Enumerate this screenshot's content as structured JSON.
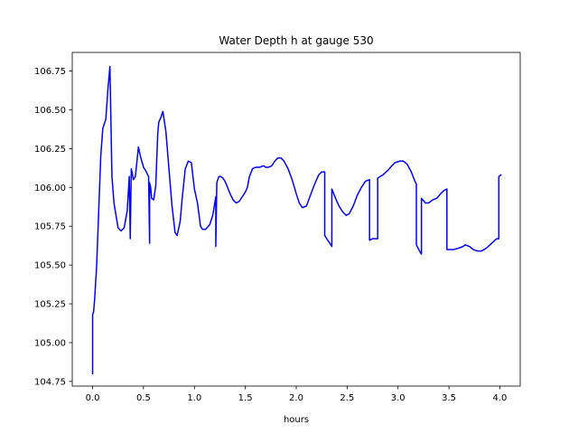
{
  "chart_data": {
    "type": "line",
    "title": "Water Depth h at gauge 530",
    "xlabel": "hours",
    "ylabel": "",
    "xlim": [
      -0.2,
      4.2
    ],
    "ylim": [
      104.72,
      106.87
    ],
    "xticks": [
      0.0,
      0.5,
      1.0,
      1.5,
      2.0,
      2.5,
      3.0,
      3.5,
      4.0
    ],
    "xtick_labels": [
      "0.0",
      "0.5",
      "1.0",
      "1.5",
      "2.0",
      "2.5",
      "3.0",
      "3.5",
      "4.0"
    ],
    "yticks": [
      104.75,
      105.0,
      105.25,
      105.5,
      105.75,
      106.0,
      106.25,
      106.5,
      106.75
    ],
    "ytick_labels": [
      "104.75",
      "105.00",
      "105.25",
      "105.50",
      "105.75",
      "106.00",
      "106.25",
      "106.50",
      "106.75"
    ],
    "grid": false,
    "series": [
      {
        "color": "#0000ff",
        "x": [
          0.0,
          0.0,
          0.01,
          0.02,
          0.04,
          0.06,
          0.08,
          0.1,
          0.11,
          0.13,
          0.15,
          0.17,
          0.19,
          0.21,
          0.25,
          0.28,
          0.31,
          0.34,
          0.36,
          0.37,
          0.37,
          0.38,
          0.39,
          0.4,
          0.42,
          0.45,
          0.47,
          0.5,
          0.52,
          0.55,
          0.56,
          0.56,
          0.57,
          0.58,
          0.6,
          0.62,
          0.64,
          0.65,
          0.67,
          0.69,
          0.72,
          0.75,
          0.78,
          0.81,
          0.83,
          0.86,
          0.88,
          0.91,
          0.94,
          0.97,
          1.0,
          1.03,
          1.06,
          1.08,
          1.11,
          1.15,
          1.18,
          1.21,
          1.21,
          1.22,
          1.24,
          1.26,
          1.28,
          1.3,
          1.32,
          1.35,
          1.38,
          1.41,
          1.44,
          1.47,
          1.5,
          1.52,
          1.54,
          1.57,
          1.6,
          1.64,
          1.68,
          1.7,
          1.73,
          1.76,
          1.79,
          1.82,
          1.85,
          1.88,
          1.92,
          1.96,
          2.0,
          2.03,
          2.06,
          2.1,
          2.14,
          2.18,
          2.22,
          2.25,
          2.28,
          2.28,
          2.33,
          2.35,
          2.35,
          2.38,
          2.42,
          2.46,
          2.49,
          2.52,
          2.56,
          2.6,
          2.64,
          2.68,
          2.72,
          2.72,
          2.75,
          2.8,
          2.8,
          2.85,
          2.9,
          2.94,
          2.97,
          3.02,
          3.05,
          3.09,
          3.13,
          3.16,
          3.18,
          3.18,
          3.22,
          3.23,
          3.23,
          3.27,
          3.3,
          3.34,
          3.38,
          3.42,
          3.45,
          3.48,
          3.48,
          3.55,
          3.6,
          3.64,
          3.66,
          3.7,
          3.74,
          3.78,
          3.82,
          3.87,
          3.92,
          3.97,
          3.99,
          3.99,
          4.01
        ],
        "y": [
          104.8,
          105.18,
          105.2,
          105.28,
          105.5,
          105.85,
          106.2,
          106.38,
          106.4,
          106.44,
          106.63,
          106.78,
          106.07,
          105.9,
          105.74,
          105.72,
          105.74,
          105.85,
          106.07,
          105.67,
          105.7,
          106.12,
          106.09,
          106.05,
          106.07,
          106.26,
          106.2,
          106.13,
          106.11,
          106.07,
          105.64,
          106.03,
          106.0,
          105.93,
          105.92,
          106.01,
          106.35,
          106.42,
          106.45,
          106.49,
          106.36,
          106.12,
          105.88,
          105.71,
          105.69,
          105.78,
          105.93,
          106.12,
          106.17,
          106.16,
          105.99,
          105.9,
          105.75,
          105.73,
          105.73,
          105.76,
          105.82,
          105.94,
          105.62,
          106.03,
          106.07,
          106.07,
          106.06,
          106.04,
          106.01,
          105.96,
          105.92,
          105.9,
          105.91,
          105.94,
          105.97,
          106.0,
          106.07,
          106.12,
          106.13,
          106.13,
          106.14,
          106.13,
          106.13,
          106.14,
          106.17,
          106.19,
          106.19,
          106.17,
          106.12,
          106.05,
          105.96,
          105.9,
          105.87,
          105.88,
          105.95,
          106.02,
          106.08,
          106.1,
          106.1,
          105.69,
          105.64,
          105.62,
          105.99,
          105.94,
          105.88,
          105.84,
          105.82,
          105.83,
          105.88,
          105.95,
          106.0,
          106.04,
          106.05,
          105.66,
          105.67,
          105.67,
          106.06,
          106.08,
          106.11,
          106.14,
          106.16,
          106.17,
          106.17,
          106.15,
          106.1,
          106.05,
          106.02,
          105.63,
          105.58,
          105.57,
          105.93,
          105.9,
          105.9,
          105.92,
          105.93,
          105.96,
          105.98,
          105.99,
          105.6,
          105.6,
          105.61,
          105.62,
          105.63,
          105.62,
          105.6,
          105.59,
          105.59,
          105.61,
          105.64,
          105.67,
          105.67,
          106.07,
          106.08
        ]
      }
    ]
  }
}
